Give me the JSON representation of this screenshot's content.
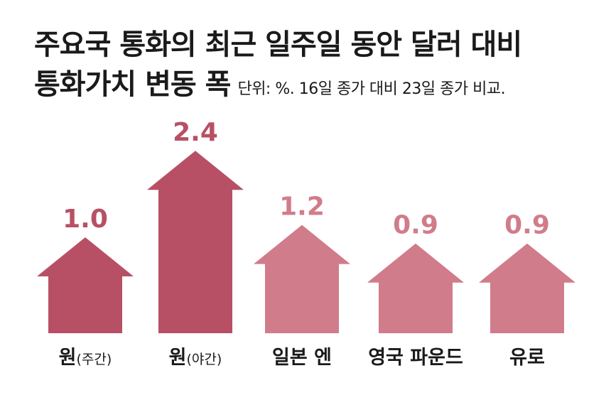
{
  "title": {
    "line1": "주요국 통화의 최근 일주일 동안 달러 대비",
    "line2": "통화가치 변동 폭",
    "note": "단위: %. 16일 종가 대비 23일 종가 비교."
  },
  "colors": {
    "dark": "#b85065",
    "light": "#d17c8a"
  },
  "chart_data": {
    "type": "bar",
    "title": "주요국 통화의 최근 일주일 동안 달러 대비 통화가치 변동 폭",
    "unit": "단위: %. 16일 종가 대비 23일 종가 비교.",
    "categories": [
      {
        "label": "원",
        "sub": "(주간)",
        "value": 1.0,
        "value_label": "1.0",
        "color": "#b85065"
      },
      {
        "label": "원",
        "sub": "(야간)",
        "value": 2.4,
        "value_label": "2.4",
        "color": "#b85065"
      },
      {
        "label": "일본 엔",
        "sub": "",
        "value": 1.2,
        "value_label": "1.2",
        "color": "#d17c8a"
      },
      {
        "label": "영국 파운드",
        "sub": "",
        "value": 0.9,
        "value_label": "0.9",
        "color": "#d17c8a"
      },
      {
        "label": "유로",
        "sub": "",
        "value": 0.9,
        "value_label": "0.9",
        "color": "#d17c8a"
      }
    ]
  }
}
